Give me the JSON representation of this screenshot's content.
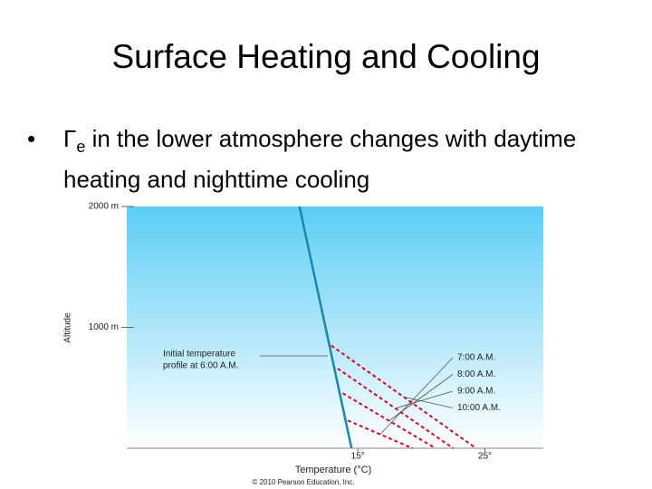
{
  "title": "Surface Heating and Cooling",
  "bullet": {
    "symbol": "Γ",
    "subscript": "e",
    "text": "in the lower atmosphere changes with daytime heating and nighttime cooling"
  },
  "chart_data": {
    "type": "line",
    "x_label": "Temperature (°C)",
    "y_label": "Altitude",
    "annotations": [
      "Initial temperature",
      "profile at 6:00 A.M."
    ],
    "credit": "© 2010 Pearson Education, Inc.",
    "xlim": [
      -3.2,
      29.6
    ],
    "ylim": [
      0,
      2000
    ],
    "xticks": [
      {
        "value": 15,
        "label": "15°"
      },
      {
        "value": 25,
        "label": "25°"
      }
    ],
    "yticks": [
      {
        "value": 1000,
        "label": "1000 m"
      },
      {
        "value": 2000,
        "label": "2000 m"
      }
    ],
    "series": [
      {
        "color": "#1b86a8",
        "dashed": false,
        "x": [
          10.4,
          14.5
        ],
        "values": [
          2000,
          0
        ]
      },
      {
        "name": "7:00 A.M.",
        "color": "#c8102e",
        "dashed": true,
        "x": [
          14.2,
          19.3
        ],
        "values": [
          230,
          0
        ]
      },
      {
        "name": "8:00 A.M.",
        "color": "#c8102e",
        "dashed": true,
        "x": [
          13.8,
          21.1
        ],
        "values": [
          455,
          0
        ]
      },
      {
        "name": "9:00 A.M.",
        "color": "#c8102e",
        "dashed": true,
        "x": [
          13.4,
          22.5
        ],
        "values": [
          660,
          0
        ]
      },
      {
        "name": "10:00 A.M.",
        "color": "#c8102e",
        "dashed": true,
        "x": [
          12.9,
          24.3
        ],
        "values": [
          850,
          0
        ]
      }
    ]
  }
}
